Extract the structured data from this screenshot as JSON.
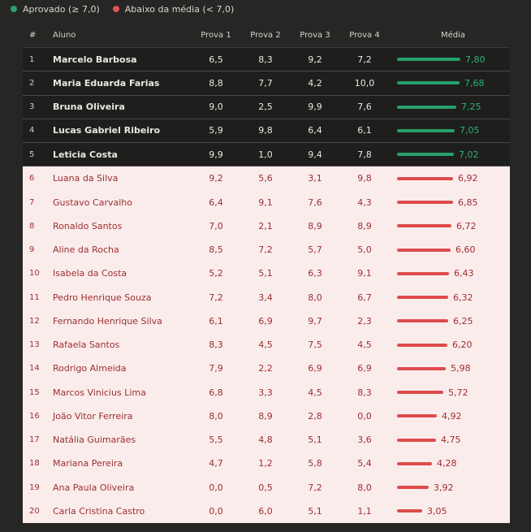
{
  "legend": {
    "pass_label": "Aprovado (≥ 7,0)",
    "fail_label": "Abaixo da média (< 7,0)",
    "pass_color": "#2aa26c",
    "fail_color": "#e45151"
  },
  "headers": {
    "num": "#",
    "name": "Aluno",
    "p1": "Prova 1",
    "p2": "Prova 2",
    "p3": "Prova 3",
    "p4": "Prova 4",
    "media": "Média"
  },
  "passing_threshold": 7.0,
  "rows": [
    {
      "n": "1",
      "name": "Marcelo Barbosa",
      "p1": "6,5",
      "p2": "8,3",
      "p3": "9,2",
      "p4": "7,2",
      "media": "7,80",
      "value": 7.8
    },
    {
      "n": "2",
      "name": "Maria Eduarda Farias",
      "p1": "8,8",
      "p2": "7,7",
      "p3": "4,2",
      "p4": "10,0",
      "media": "7,68",
      "value": 7.68
    },
    {
      "n": "3",
      "name": "Bruna Oliveira",
      "p1": "9,0",
      "p2": "2,5",
      "p3": "9,9",
      "p4": "7,6",
      "media": "7,25",
      "value": 7.25
    },
    {
      "n": "4",
      "name": "Lucas Gabriel Ribeiro",
      "p1": "5,9",
      "p2": "9,8",
      "p3": "6,4",
      "p4": "6,1",
      "media": "7,05",
      "value": 7.05
    },
    {
      "n": "5",
      "name": "Leticia Costa",
      "p1": "9,9",
      "p2": "1,0",
      "p3": "9,4",
      "p4": "7,8",
      "media": "7,02",
      "value": 7.02
    },
    {
      "n": "6",
      "name": "Luana da Silva",
      "p1": "9,2",
      "p2": "5,6",
      "p3": "3,1",
      "p4": "9,8",
      "media": "6,92",
      "value": 6.92
    },
    {
      "n": "7",
      "name": "Gustavo Carvalho",
      "p1": "6,4",
      "p2": "9,1",
      "p3": "7,6",
      "p4": "4,3",
      "media": "6,85",
      "value": 6.85
    },
    {
      "n": "8",
      "name": "Ronaldo Santos",
      "p1": "7,0",
      "p2": "2,1",
      "p3": "8,9",
      "p4": "8,9",
      "media": "6,72",
      "value": 6.72
    },
    {
      "n": "9",
      "name": "Aline da Rocha",
      "p1": "8,5",
      "p2": "7,2",
      "p3": "5,7",
      "p4": "5,0",
      "media": "6,60",
      "value": 6.6
    },
    {
      "n": "10",
      "name": "Isabela da Costa",
      "p1": "5,2",
      "p2": "5,1",
      "p3": "6,3",
      "p4": "9,1",
      "media": "6,43",
      "value": 6.43
    },
    {
      "n": "11",
      "name": "Pedro Henrique Souza",
      "p1": "7,2",
      "p2": "3,4",
      "p3": "8,0",
      "p4": "6,7",
      "media": "6,32",
      "value": 6.32
    },
    {
      "n": "12",
      "name": "Fernando Henrique Silva",
      "p1": "6,1",
      "p2": "6,9",
      "p3": "9,7",
      "p4": "2,3",
      "media": "6,25",
      "value": 6.25
    },
    {
      "n": "13",
      "name": "Rafaela Santos",
      "p1": "8,3",
      "p2": "4,5",
      "p3": "7,5",
      "p4": "4,5",
      "media": "6,20",
      "value": 6.2
    },
    {
      "n": "14",
      "name": "Rodrigo Almeida",
      "p1": "7,9",
      "p2": "2,2",
      "p3": "6,9",
      "p4": "6,9",
      "media": "5,98",
      "value": 5.98
    },
    {
      "n": "15",
      "name": "Marcos Vinicius Lima",
      "p1": "6,8",
      "p2": "3,3",
      "p3": "4,5",
      "p4": "8,3",
      "media": "5,72",
      "value": 5.72
    },
    {
      "n": "16",
      "name": "João Vitor Ferreira",
      "p1": "8,0",
      "p2": "8,9",
      "p3": "2,8",
      "p4": "0,0",
      "media": "4,92",
      "value": 4.92
    },
    {
      "n": "17",
      "name": "Natália Guimarães",
      "p1": "5,5",
      "p2": "4,8",
      "p3": "5,1",
      "p4": "3,6",
      "media": "4,75",
      "value": 4.75
    },
    {
      "n": "18",
      "name": "Mariana Pereira",
      "p1": "4,7",
      "p2": "1,2",
      "p3": "5,8",
      "p4": "5,4",
      "media": "4,28",
      "value": 4.28
    },
    {
      "n": "19",
      "name": "Ana Paula Oliveira",
      "p1": "0,0",
      "p2": "0,5",
      "p3": "7,2",
      "p4": "8,0",
      "media": "3,92",
      "value": 3.92
    },
    {
      "n": "20",
      "name": "Carla Cristina Castro",
      "p1": "0,0",
      "p2": "6,0",
      "p3": "5,1",
      "p4": "1,1",
      "media": "3,05",
      "value": 3.05
    }
  ]
}
